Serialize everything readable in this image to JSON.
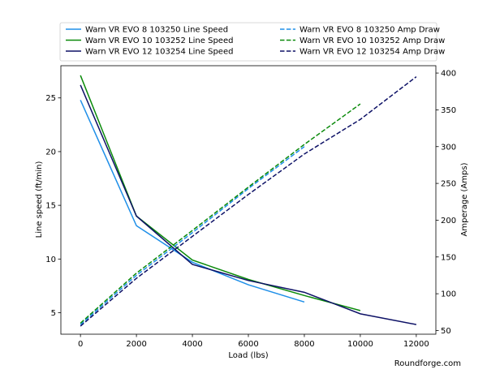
{
  "chart_data": {
    "type": "line",
    "title": "",
    "xlabel": "Load (lbs)",
    "ylabel_left": "Line speed (ft/min)",
    "ylabel_right": "Amperage (Amps)",
    "xlim": [
      -700,
      12700
    ],
    "ylim_left": [
      3.0,
      28.0
    ],
    "ylim_right": [
      45,
      410
    ],
    "x_ticks": [
      0,
      2000,
      4000,
      6000,
      8000,
      10000,
      12000
    ],
    "y_left_ticks": [
      5,
      10,
      15,
      20,
      25
    ],
    "y_right_ticks": [
      50,
      100,
      150,
      200,
      250,
      300,
      350,
      400
    ],
    "grid": false,
    "legend_position": "top",
    "series": [
      {
        "name": "Warn VR EVO 8 103250 Line Speed",
        "axis": "left",
        "style": "solid",
        "color": "#1f8fe8",
        "x": [
          0,
          2000,
          4000,
          6000,
          8000
        ],
        "y": [
          24.8,
          13.1,
          9.7,
          7.6,
          6.0
        ]
      },
      {
        "name": "Warn VR EVO 10 103252 Line Speed",
        "axis": "left",
        "style": "solid",
        "color": "#0a8a0a",
        "x": [
          0,
          2000,
          4000,
          6000,
          8000,
          10000
        ],
        "y": [
          27.1,
          14.0,
          9.9,
          8.1,
          6.6,
          5.2
        ]
      },
      {
        "name": "Warn VR EVO 12 103254 Line Speed",
        "axis": "left",
        "style": "solid",
        "color": "#0d1166",
        "x": [
          0,
          2000,
          4000,
          6000,
          8000,
          10000,
          12000
        ],
        "y": [
          26.2,
          14.0,
          9.5,
          8.0,
          6.9,
          4.9,
          3.9
        ]
      },
      {
        "name": "Warn VR EVO 8 103250 Amp Draw",
        "axis": "right",
        "style": "dashed",
        "color": "#1f8fe8",
        "x": [
          0,
          2000,
          4000,
          6000,
          8000
        ],
        "y": [
          58,
          125,
          183,
          243,
          300
        ]
      },
      {
        "name": "Warn VR EVO 10 103252 Amp Draw",
        "axis": "right",
        "style": "dashed",
        "color": "#0a8a0a",
        "x": [
          0,
          2000,
          4000,
          6000,
          8000,
          10000
        ],
        "y": [
          60,
          128,
          186,
          245,
          303,
          358
        ]
      },
      {
        "name": "Warn VR EVO 12 103254 Amp Draw",
        "axis": "right",
        "style": "dashed",
        "color": "#0d1166",
        "x": [
          0,
          2000,
          4000,
          6000,
          8000,
          10000,
          12000
        ],
        "y": [
          56,
          121,
          178,
          235,
          290,
          337,
          395
        ]
      }
    ]
  },
  "watermark": "Roundforge.com"
}
